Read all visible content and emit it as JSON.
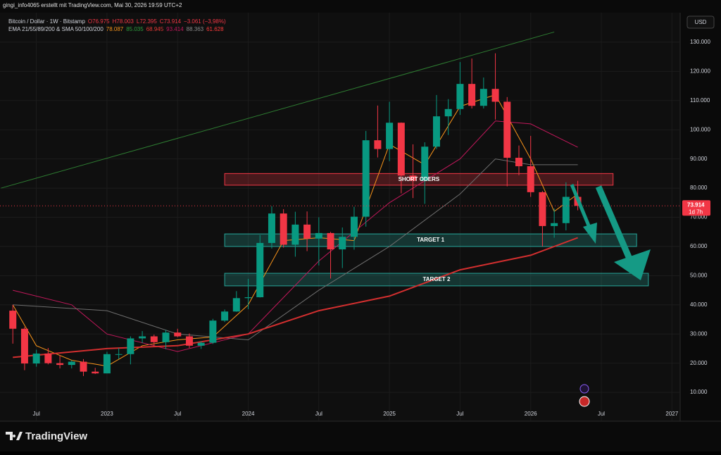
{
  "header": {
    "byline": "gingi_info4065 erstellt mit TradingView.com, Mai 30, 2026 19:59 UTC+2",
    "symbol": "Bitcoin / Dollar · 1W · Bitstamp",
    "ohlc": [
      "O76.975",
      "H78.003",
      "L72.395",
      "C73.914",
      "−3.061 (−3,98%)"
    ],
    "indicator": "EMA 21/55/89/200 & SMA 50/100/200",
    "indicator_values": [
      {
        "text": "78.087",
        "color": "#f7931a"
      },
      {
        "text": "85.035",
        "color": "#2e9e3e"
      },
      {
        "text": "68.945",
        "color": "#e53935"
      },
      {
        "text": "93.414",
        "color": "#c2185b"
      },
      {
        "text": "88.363",
        "color": "#8a8a8a"
      },
      {
        "text": "61.628",
        "color": "#ff3b3b"
      }
    ],
    "currency": "USD",
    "brand": "TradingView"
  },
  "chart_data": {
    "type": "candlestick",
    "x": [
      "2022-05",
      "2022-06",
      "2022-07",
      "2022-08",
      "2022-09",
      "2022-10",
      "2022-11",
      "2022-12",
      "2023-01",
      "2023-02",
      "2023-03",
      "2023-04",
      "2023-05",
      "2023-06",
      "2023-07",
      "2023-08",
      "2023-09",
      "2023-10",
      "2023-11",
      "2023-12",
      "2024-01",
      "2024-02",
      "2024-03",
      "2024-04",
      "2024-05",
      "2024-06",
      "2024-07",
      "2024-08",
      "2024-09",
      "2024-10",
      "2024-11",
      "2024-12",
      "2025-01",
      "2025-02",
      "2025-03",
      "2025-04",
      "2025-05",
      "2025-06",
      "2025-07",
      "2025-08",
      "2025-09",
      "2025-10",
      "2025-11",
      "2025-12",
      "2026-01",
      "2026-02",
      "2026-03",
      "2026-04",
      "2026-05"
    ],
    "open": [
      38000,
      31800,
      19900,
      23300,
      20000,
      19400,
      20500,
      17100,
      16500,
      23100,
      23100,
      28500,
      29200,
      27200,
      30500,
      29200,
      26000,
      27000,
      34600,
      37700,
      42300,
      42600,
      61200,
      71300,
      60600,
      67500,
      62700,
      64600,
      59000,
      63300,
      70200,
      96400,
      93400,
      102400,
      84300,
      82500,
      94200,
      104600,
      107100,
      115700,
      108200,
      114000,
      109600,
      90400,
      87500,
      78600,
      67000,
      68000,
      77000
    ],
    "high": [
      40000,
      32400,
      24600,
      25200,
      22700,
      21000,
      21400,
      18400,
      23900,
      25200,
      29200,
      31000,
      29800,
      31400,
      31800,
      30200,
      27500,
      35200,
      38400,
      44700,
      48900,
      63900,
      73800,
      72800,
      71900,
      72000,
      70000,
      65000,
      66500,
      73600,
      99600,
      108300,
      109600,
      102500,
      95000,
      95700,
      111900,
      110500,
      123200,
      124400,
      117900,
      126200,
      111200,
      94600,
      97900,
      79000,
      73000,
      82000,
      82500
    ],
    "low": [
      26700,
      17600,
      18800,
      19600,
      18200,
      18200,
      15600,
      16300,
      16500,
      21400,
      19600,
      26900,
      25800,
      24800,
      28900,
      25200,
      24900,
      26600,
      34100,
      37600,
      38500,
      42500,
      59300,
      59600,
      56500,
      58400,
      53500,
      49000,
      52600,
      58900,
      66800,
      90500,
      89200,
      78200,
      76600,
      74600,
      93400,
      98200,
      105100,
      107300,
      107300,
      103500,
      80600,
      84400,
      77000,
      60000,
      63000,
      65500,
      72395
    ],
    "close": [
      31800,
      19900,
      23300,
      20000,
      19400,
      20500,
      17100,
      16500,
      23100,
      23100,
      28500,
      29200,
      27200,
      30500,
      29200,
      26000,
      27000,
      34600,
      37700,
      42300,
      42600,
      61200,
      71300,
      60600,
      67500,
      62700,
      64600,
      59000,
      63300,
      70200,
      96400,
      93400,
      102400,
      84300,
      82500,
      94200,
      104600,
      107100,
      115700,
      108200,
      114000,
      109600,
      90400,
      87500,
      78600,
      67000,
      68000,
      77000,
      73914
    ],
    "up_color": "#089981",
    "down_color": "#f23645",
    "series": [
      {
        "color": "#f7931a",
        "x": [
          "2022-05",
          "2022-07",
          "2022-10",
          "2023-01",
          "2023-04",
          "2023-07",
          "2023-10",
          "2024-01",
          "2024-04",
          "2024-07",
          "2024-10",
          "2025-01",
          "2025-04",
          "2025-07",
          "2025-10",
          "2026-01",
          "2026-03",
          "2026-05"
        ],
        "values": [
          40000,
          26000,
          21000,
          19000,
          26000,
          28000,
          29000,
          40000,
          62000,
          63000,
          62000,
          95000,
          88000,
          108000,
          112000,
          90000,
          72000,
          78000
        ]
      },
      {
        "color": "#c2185b",
        "x": [
          "2022-05",
          "2022-10",
          "2023-01",
          "2023-07",
          "2024-01",
          "2024-07",
          "2025-01",
          "2025-07",
          "2025-10",
          "2026-01",
          "2026-05"
        ],
        "values": [
          45000,
          40000,
          30000,
          24000,
          30000,
          55000,
          75000,
          90000,
          103000,
          102000,
          94000
        ]
      },
      {
        "color": "#6e6e6e",
        "x": [
          "2022-05",
          "2023-01",
          "2023-07",
          "2024-01",
          "2024-07",
          "2025-01",
          "2025-07",
          "2025-10",
          "2026-01",
          "2026-05"
        ],
        "values": [
          40000,
          38000,
          30000,
          28000,
          45000,
          60000,
          78000,
          90000,
          88000,
          88000
        ]
      },
      {
        "color": "#d32f2f",
        "x": [
          "2022-05",
          "2023-01",
          "2023-07",
          "2024-01",
          "2024-07",
          "2025-01",
          "2025-07",
          "2026-01",
          "2026-05"
        ],
        "values": [
          22000,
          25000,
          26000,
          30000,
          38000,
          43000,
          52000,
          57000,
          63000
        ]
      }
    ],
    "trendline": {
      "color": "#2e7d32",
      "x": [
        "2022-04",
        "2026-03"
      ],
      "values": [
        80000,
        133500
      ]
    },
    "zones": [
      {
        "label": "SHORT ODERS",
        "x": [
          "2023-11",
          "2026-08"
        ],
        "range": [
          81000,
          85000
        ],
        "color": "#f23645"
      },
      {
        "label": "TARGET 1",
        "x": [
          "2023-11",
          "2026-10"
        ],
        "range": [
          60000,
          64300
        ],
        "color": "#26a69a"
      },
      {
        "label": "TARGET 2",
        "x": [
          "2023-11",
          "2026-11"
        ],
        "range": [
          46500,
          50800
        ],
        "color": "#26a69a"
      }
    ],
    "price_line": {
      "value": 73914,
      "label": "73.914",
      "countdown": "1d 7h",
      "color": "#f23645"
    },
    "xlim": [
      "2022-04",
      "2027-02"
    ],
    "xticks": [
      {
        "value": "2022-07",
        "label": "Jul"
      },
      {
        "value": "2023-01",
        "label": "2023"
      },
      {
        "value": "2023-07",
        "label": "Jul"
      },
      {
        "value": "2024-01",
        "label": "2024"
      },
      {
        "value": "2024-07",
        "label": "Jul"
      },
      {
        "value": "2025-01",
        "label": "2025"
      },
      {
        "value": "2025-07",
        "label": "Jul"
      },
      {
        "value": "2026-01",
        "label": "2026"
      },
      {
        "value": "2026-07",
        "label": "Jul"
      },
      {
        "value": "2027-01",
        "label": "2027"
      }
    ],
    "ylim": [
      0,
      140000
    ],
    "yticks": [
      {
        "value": 10000,
        "label": "10.000"
      },
      {
        "value": 20000,
        "label": "20.000"
      },
      {
        "value": 30000,
        "label": "30.000"
      },
      {
        "value": 40000,
        "label": "40.000"
      },
      {
        "value": 50000,
        "label": "50.000"
      },
      {
        "value": 60000,
        "label": "60.000"
      },
      {
        "value": 70000,
        "label": "70.000"
      },
      {
        "value": 80000,
        "label": "80.000"
      },
      {
        "value": 90000,
        "label": "90.000"
      },
      {
        "value": 100000,
        "label": "100.000"
      },
      {
        "value": 110000,
        "label": "110.000"
      },
      {
        "value": 120000,
        "label": "120.000"
      },
      {
        "value": 130000,
        "label": "130.000"
      }
    ]
  }
}
